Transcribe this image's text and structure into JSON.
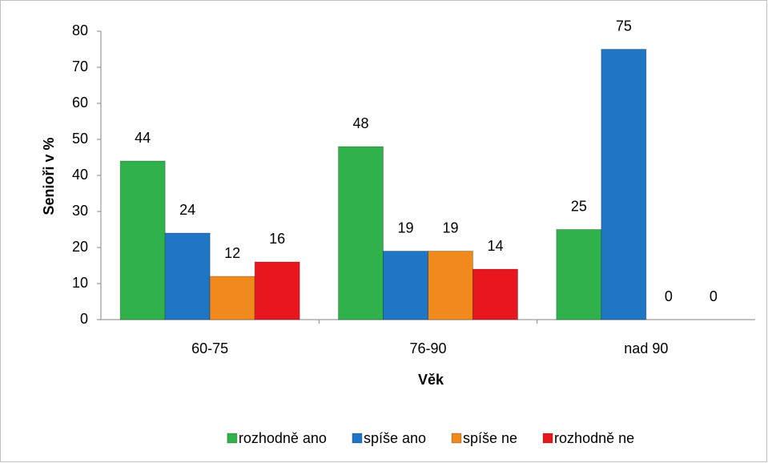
{
  "chart_data": {
    "type": "bar",
    "categories": [
      "60-75",
      "76-90",
      "nad 90"
    ],
    "series": [
      {
        "name": "rozhodně ano",
        "color": "#2fb24c",
        "values": [
          44,
          48,
          25
        ]
      },
      {
        "name": "spíše ano",
        "color": "#1f76c4",
        "values": [
          24,
          19,
          75
        ]
      },
      {
        "name": "spíše ne",
        "color": "#f08a1d",
        "values": [
          12,
          19,
          0
        ]
      },
      {
        "name": "rozhodně ne",
        "color": "#e8161e",
        "values": [
          16,
          14,
          0
        ]
      }
    ],
    "y_label": "Senioři v %",
    "x_label": "Věk",
    "ylim": [
      0,
      80
    ],
    "yticks": [
      0,
      10,
      20,
      30,
      40,
      50,
      60,
      70,
      80
    ],
    "grid": false,
    "legend": "bottom"
  }
}
